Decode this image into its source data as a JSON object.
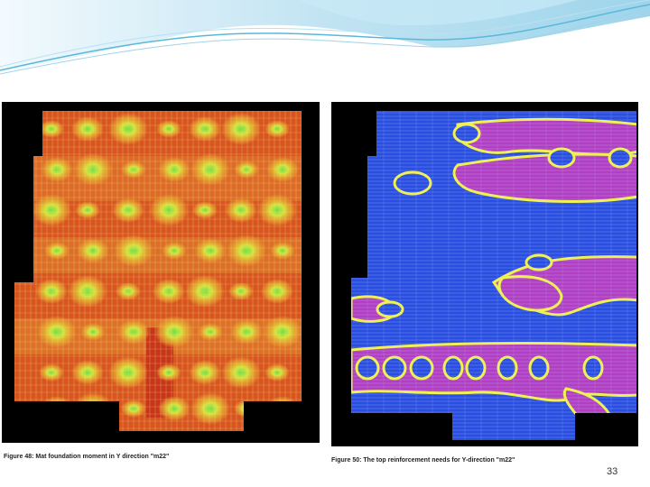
{
  "slide": {
    "page_number": "33"
  },
  "figures": [
    {
      "caption": "Figure 48: Mat foundation moment in Y direction \"m22\"",
      "colors": {
        "background": "#000000",
        "base": "#d9551e",
        "mid": "#e8a12c",
        "hot": "#d8e23a",
        "peak": "#66e24a"
      }
    },
    {
      "caption": "Figure 50: The top reinforcement needs for Y-direction \"m22\"",
      "colors": {
        "background": "#000000",
        "base": "#2a4fe0",
        "band": "#b13fc4",
        "edge": "#f2f24a",
        "ring": "#37e06a"
      }
    }
  ],
  "theme": {
    "wave_light": "#d6eef8",
    "wave_mid": "#9fd3ea",
    "wave_dark": "#5ab7dc"
  }
}
